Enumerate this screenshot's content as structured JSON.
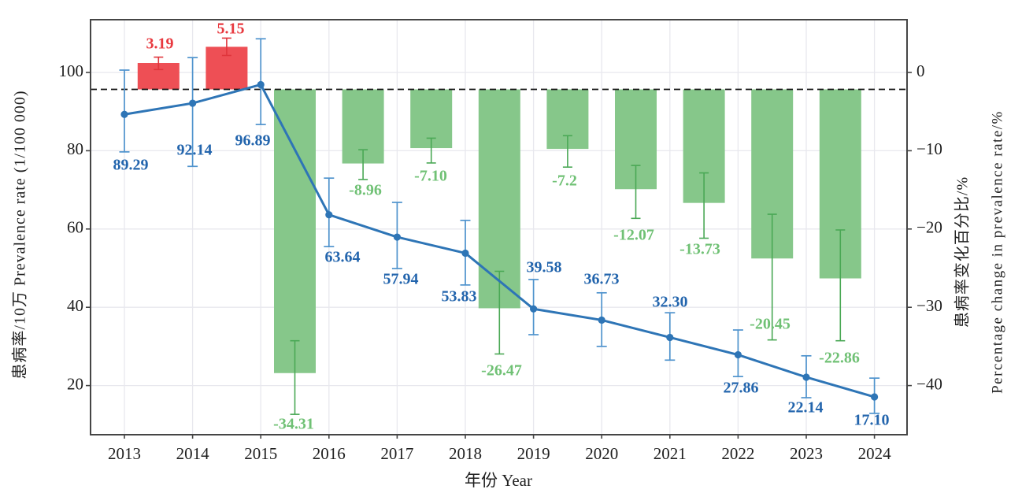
{
  "figure": {
    "background": "#ffffff",
    "x_axis_title": "年份  Year",
    "left_axis_title": "患病率/10万  Prevalence rate (1/100 000)",
    "right_axis_title_cn": "患病率变化百分比/%",
    "right_axis_title_en": "Percentage change in prevalence rate/%",
    "left_tick_labels": [
      "100",
      "80",
      "60",
      "40",
      "20"
    ],
    "right_tick_labels": [
      "0",
      "−10",
      "−20",
      "−30",
      "−40"
    ],
    "year_tick_labels": [
      "2013",
      "2014",
      "2015",
      "2016",
      "2017",
      "2018",
      "2019",
      "2020",
      "2021",
      "2022",
      "2023",
      "2024"
    ],
    "colors": {
      "line": "#2e75b6",
      "line_error": "#4f93cd",
      "line_label": "#2365ad",
      "bar_positive": "#ee4f55",
      "bar_positive_error": "#e0353c",
      "bar_positive_label": "#e8393f",
      "bar_negative": "#86c78a",
      "bar_negative_error": "#4aa855",
      "bar_negative_label": "#70c175",
      "grid": "#e8e8ee",
      "spine": "#454545",
      "tick_text": "#1f1f1f",
      "reference_line": "#151515"
    }
  },
  "chart_data": {
    "type": "line+bar",
    "title": "",
    "xlabel": "年份  Year",
    "ylabel_left": "患病率/10万  Prevalence rate (1/100 000)",
    "ylabel_right": "患病率变化百分比/% Percentage change in prevalence rate/%",
    "grid": true,
    "legend": "none",
    "x": [
      2013,
      2014,
      2015,
      2016,
      2017,
      2018,
      2019,
      2020,
      2021,
      2022,
      2023,
      2024
    ],
    "left_axis_ticks": [
      100,
      80,
      60,
      40,
      20
    ],
    "right_axis_ticks": [
      0,
      -10,
      -20,
      -30,
      -40
    ],
    "reference_line": {
      "axis": "right",
      "value": 0,
      "style": "dashed"
    },
    "line_series": {
      "name": "患病率 Prevalence rate",
      "type": "line",
      "values": [
        89.29,
        92.14,
        96.89,
        63.64,
        57.94,
        53.83,
        39.58,
        36.73,
        32.3,
        27.86,
        22.14,
        17.1
      ],
      "labels": [
        "89.29",
        "92.14",
        "96.89",
        "63.64",
        "57.94",
        "53.83",
        "39.58",
        "36.73",
        "32.30",
        "27.86",
        "22.14",
        "17.10"
      ],
      "ci_low": [
        79.7,
        76.0,
        86.7,
        55.5,
        49.9,
        45.7,
        33.0,
        30.0,
        26.5,
        22.3,
        16.9,
        12.9
      ],
      "ci_high": [
        100.6,
        103.8,
        108.6,
        73.0,
        66.8,
        62.2,
        47.1,
        43.7,
        38.6,
        34.2,
        27.6,
        21.9
      ]
    },
    "bar_series": {
      "name": "患病率变化百分比 Percentage change in prevalence rate",
      "type": "bar",
      "x_mid": [
        2013.5,
        2014.5,
        2015.5,
        2016.5,
        2017.5,
        2018.5,
        2019.5,
        2020.5,
        2021.5,
        2022.5,
        2023.5
      ],
      "values": [
        3.19,
        5.15,
        -34.31,
        -8.96,
        -7.1,
        -26.47,
        -7.2,
        -12.07,
        -13.73,
        -20.45,
        -22.86
      ],
      "labels": [
        "3.19",
        "5.15",
        "-34.31",
        "-8.96",
        "-7.10",
        "-26.47",
        "-7.2",
        "-12.07",
        "-13.73",
        "-20.45",
        "-22.86"
      ],
      "ci_low": [
        2.4,
        4.1,
        -39.3,
        -10.9,
        -8.9,
        -32.0,
        -9.4,
        -15.6,
        -18.0,
        -30.3,
        -30.4
      ],
      "ci_high": [
        3.9,
        6.2,
        -30.4,
        -7.3,
        -5.9,
        -22.0,
        -5.6,
        -9.2,
        -10.1,
        -15.1,
        -17.0
      ]
    }
  }
}
